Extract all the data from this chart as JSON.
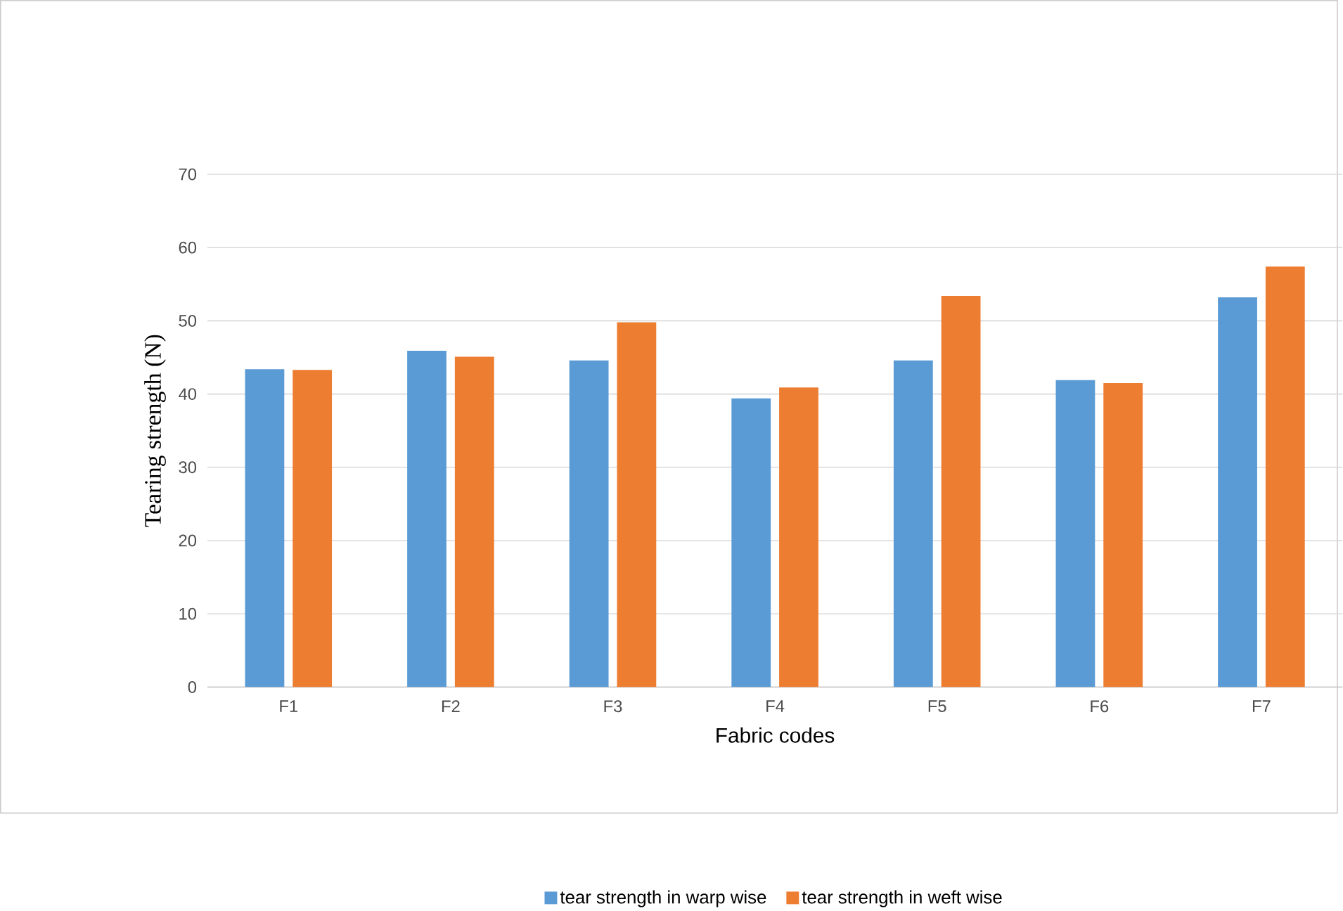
{
  "chart_data": {
    "type": "bar",
    "xlabel": "Fabric codes",
    "ylabel": "Tearing  strength (N)",
    "categories": [
      "F1",
      "F2",
      "F3",
      "F4",
      "F5",
      "F6",
      "F7"
    ],
    "series": [
      {
        "name": "tear strength in warp wise",
        "color": "#5b9bd5",
        "values": [
          43.4,
          45.9,
          44.6,
          39.4,
          44.6,
          41.9,
          53.2
        ]
      },
      {
        "name": "tear strength in weft wise",
        "color": "#ed7d31",
        "values": [
          43.3,
          45.1,
          49.8,
          40.9,
          53.4,
          41.5,
          57.4
        ]
      }
    ],
    "ylim": [
      0,
      70
    ],
    "yticks": [
      0,
      10,
      20,
      30,
      40,
      50,
      60,
      70
    ],
    "grid": "y",
    "legend": "bottom"
  }
}
